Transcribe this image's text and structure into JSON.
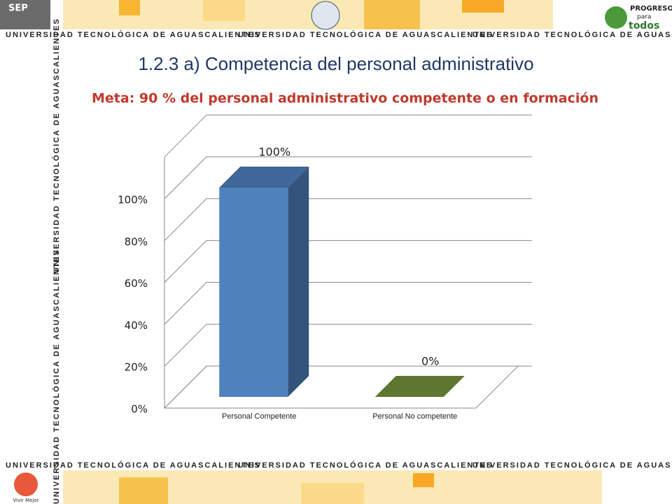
{
  "banner": "UNIVERSIDAD TECNOLÓGICA DE AGUASCALIENTES",
  "logos": {
    "sep": "SEP",
    "progreso": "PROGRESO",
    "para": "para",
    "todos": "todos",
    "vivir": "Vivir Mejor"
  },
  "chart_data": {
    "type": "bar3d",
    "title": "1.2.3 a) Competencia del personal administrativo",
    "subtitle": "Meta: 90 % del personal administrativo  competente o en formación",
    "categories": [
      "Personal Competente",
      "Personal No competente"
    ],
    "values": [
      100,
      0
    ],
    "value_labels": [
      "100%",
      "0%"
    ],
    "colors": [
      "#4f81bd",
      "#77933c"
    ],
    "ylim": [
      0,
      120
    ],
    "yticks": [
      {
        "value": 0,
        "label": "0%"
      },
      {
        "value": 20,
        "label": "20%"
      },
      {
        "value": 40,
        "label": "40%"
      },
      {
        "value": 60,
        "label": "60%"
      },
      {
        "value": 80,
        "label": "80%"
      },
      {
        "value": 100,
        "label": "100%"
      }
    ],
    "grid": true
  }
}
